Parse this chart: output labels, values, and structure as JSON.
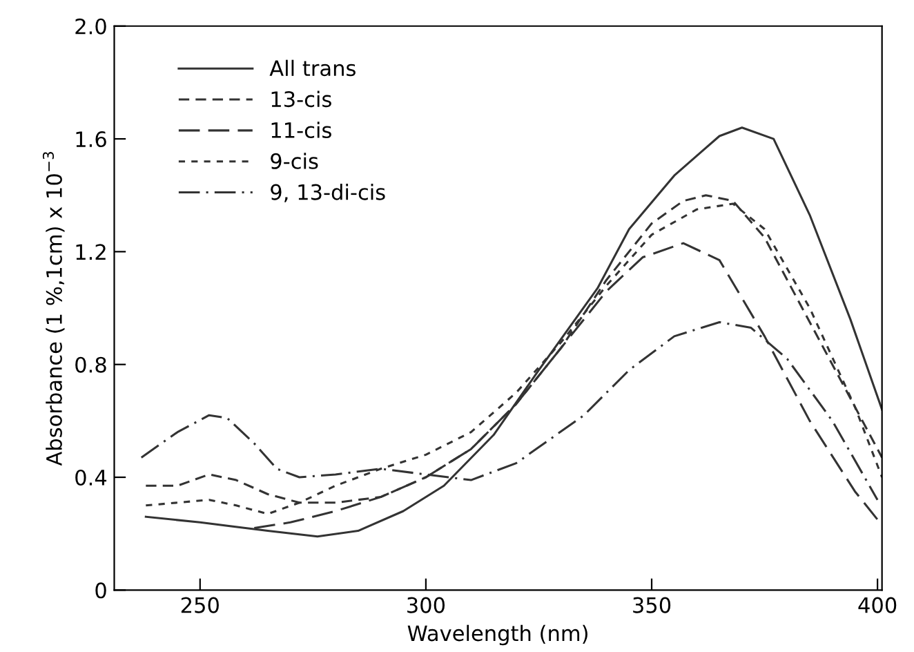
{
  "chart_data": {
    "type": "line",
    "xlabel": "Wavelength (nm)",
    "ylabel": "Absorbance (1 %,1cm) x 10$^{−3}$",
    "xlim": [
      231,
      401
    ],
    "xticks": [
      250,
      300,
      350,
      400
    ],
    "ylim": [
      0,
      2.0
    ],
    "yticks": [
      0,
      0.4,
      0.8,
      1.2,
      1.6,
      {
        "value": 2.0,
        "label": "2.0"
      }
    ],
    "grid": false,
    "legend": "top left",
    "marker": "none",
    "series": [
      {
        "name": "All trans",
        "color": "#333333",
        "line_style": "solid",
        "x": [
          238,
          250,
          265,
          276,
          285,
          295,
          304,
          315,
          325,
          338,
          345,
          355,
          365,
          370,
          377,
          385,
          394,
          401
        ],
        "values": [
          0.26,
          0.24,
          0.21,
          0.19,
          0.21,
          0.28,
          0.37,
          0.55,
          0.78,
          1.07,
          1.28,
          1.47,
          1.61,
          1.64,
          1.6,
          1.33,
          0.96,
          0.64
        ]
      },
      {
        "name": "13-cis",
        "color": "#333333",
        "line_style": "dashed",
        "x": [
          238,
          245,
          252,
          258,
          265,
          272,
          280,
          290,
          300,
          310,
          320,
          330,
          340,
          350,
          357,
          362,
          368,
          375,
          385,
          395,
          401
        ],
        "values": [
          0.37,
          0.37,
          0.41,
          0.39,
          0.34,
          0.31,
          0.31,
          0.33,
          0.4,
          0.5,
          0.66,
          0.86,
          1.1,
          1.3,
          1.38,
          1.4,
          1.38,
          1.25,
          0.95,
          0.65,
          0.47
        ]
      },
      {
        "name": "11-cis",
        "color": "#333333",
        "line_style": "longdashed",
        "x": [
          262,
          270,
          280,
          290,
          300,
          310,
          320,
          330,
          340,
          348,
          357,
          365,
          375,
          385,
          395,
          400
        ],
        "values": [
          0.22,
          0.24,
          0.28,
          0.33,
          0.4,
          0.5,
          0.66,
          0.86,
          1.06,
          1.18,
          1.23,
          1.17,
          0.9,
          0.6,
          0.35,
          0.25
        ]
      },
      {
        "name": "9-cis",
        "color": "#333333",
        "line_style": "dotted",
        "x": [
          238,
          245,
          252,
          258,
          265,
          272,
          280,
          290,
          300,
          310,
          320,
          330,
          340,
          350,
          360,
          368,
          375,
          385,
          395,
          401
        ],
        "values": [
          0.3,
          0.31,
          0.32,
          0.3,
          0.27,
          0.31,
          0.37,
          0.43,
          0.48,
          0.56,
          0.7,
          0.88,
          1.08,
          1.26,
          1.35,
          1.37,
          1.28,
          1.0,
          0.65,
          0.4
        ]
      },
      {
        "name": "9, 13-di-cis",
        "color": "#333333",
        "line_style": "dashdot",
        "x": [
          237,
          245,
          252,
          256,
          262,
          267,
          272,
          280,
          290,
          300,
          305,
          310,
          320,
          335,
          345,
          355,
          365,
          372,
          380,
          390,
          400
        ],
        "values": [
          0.47,
          0.56,
          0.62,
          0.61,
          0.52,
          0.43,
          0.4,
          0.41,
          0.43,
          0.41,
          0.4,
          0.39,
          0.45,
          0.62,
          0.78,
          0.9,
          0.95,
          0.93,
          0.82,
          0.6,
          0.32
        ]
      }
    ]
  }
}
